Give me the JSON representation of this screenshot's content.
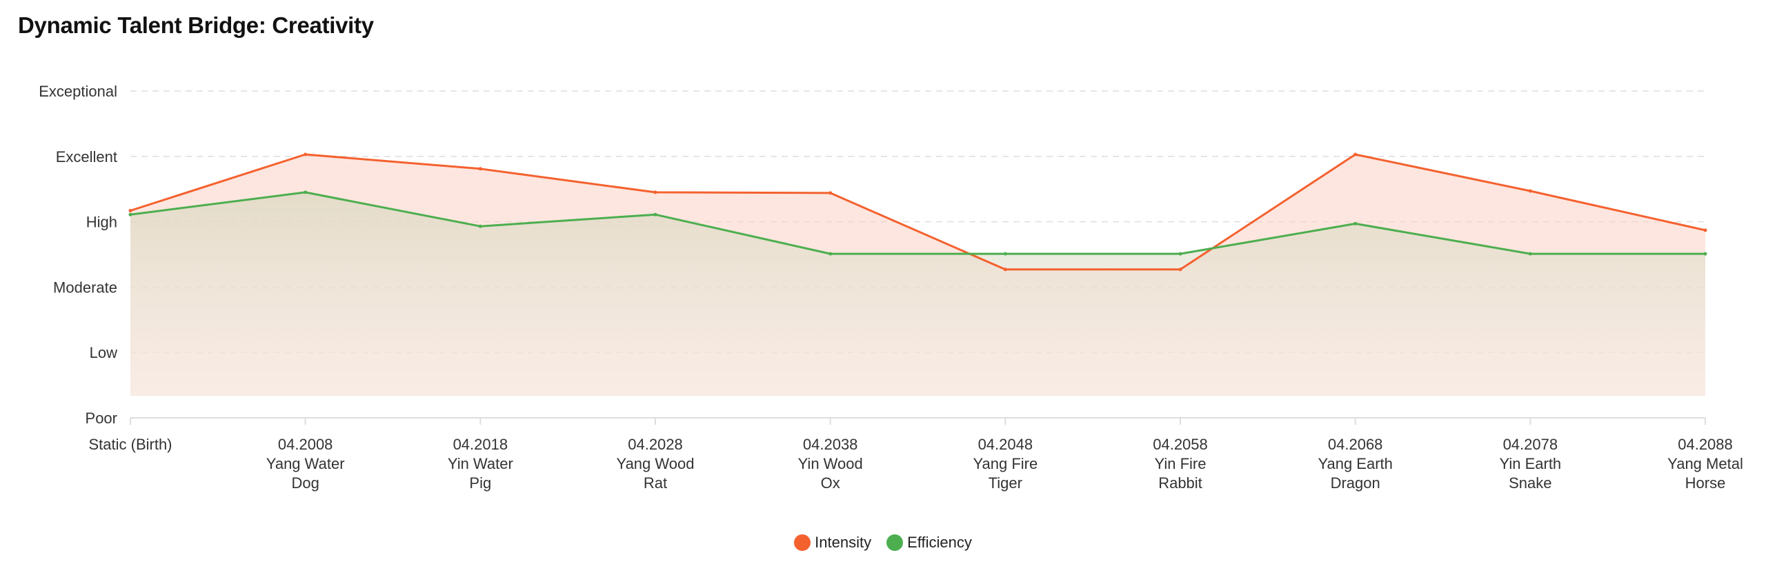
{
  "title": "Dynamic Talent Bridge: Creativity",
  "colors": {
    "intensity": "#f4612f",
    "efficiency": "#4cae4f"
  },
  "chart_data": {
    "type": "area",
    "y_levels": [
      "Poor",
      "Low",
      "Moderate",
      "High",
      "Excellent",
      "Exceptional"
    ],
    "ylim": [
      0,
      5
    ],
    "grid": true,
    "legend_position": "bottom-center",
    "categories": [
      [
        "Static (Birth)"
      ],
      [
        "04.2008",
        "Yang Water",
        "Dog"
      ],
      [
        "04.2018",
        "Yin Water",
        "Pig"
      ],
      [
        "04.2028",
        "Yang Wood",
        "Rat"
      ],
      [
        "04.2038",
        "Yin Wood",
        "Ox"
      ],
      [
        "04.2048",
        "Yang Fire",
        "Tiger"
      ],
      [
        "04.2058",
        "Yin Fire",
        "Rabbit"
      ],
      [
        "04.2068",
        "Yang Earth",
        "Dragon"
      ],
      [
        "04.2078",
        "Yin Earth",
        "Snake"
      ],
      [
        "04.2088",
        "Yang Metal",
        "Horse"
      ]
    ],
    "series": [
      {
        "name": "Intensity",
        "values": [
          3.17,
          4.03,
          3.81,
          3.45,
          3.44,
          2.27,
          2.27,
          4.03,
          3.47,
          2.87
        ]
      },
      {
        "name": "Efficiency",
        "values": [
          3.11,
          3.45,
          2.93,
          3.11,
          2.51,
          2.51,
          2.51,
          2.97,
          2.51,
          2.51
        ]
      }
    ]
  }
}
